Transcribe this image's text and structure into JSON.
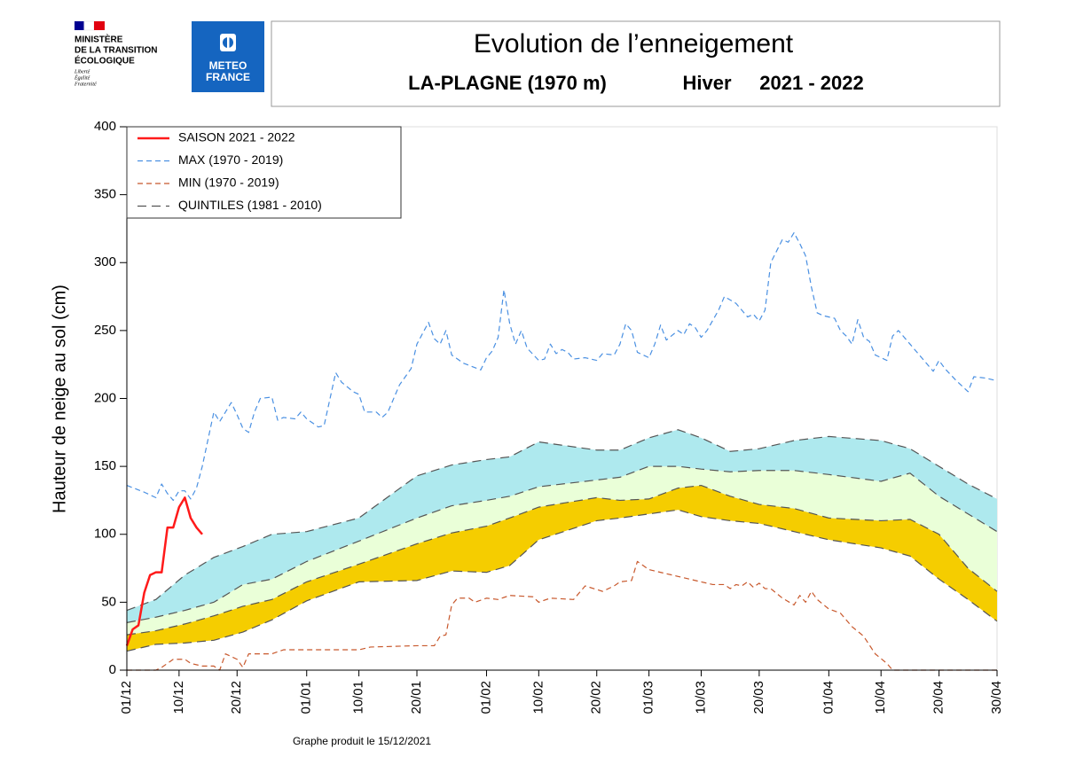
{
  "header": {
    "ministry": [
      "MINISTÈRE",
      "DE LA TRANSITION",
      "ÉCOLOGIQUE"
    ],
    "motto": [
      "Liberté",
      "Égalité",
      "Fraternité"
    ],
    "brand": [
      "METEO",
      "FRANCE"
    ]
  },
  "chart_data": {
    "type": "line",
    "title": "Evolution de l’enneigement",
    "station": "LA-PLAGNE (1970 m)",
    "season_label": "Hiver",
    "season": "2021 - 2022",
    "y_label": "Hauteur de neige au sol (cm)",
    "footer": "Graphe produit le 15/12/2021",
    "xlim": [
      0,
      150
    ],
    "xticks": [
      {
        "value": 0,
        "label": "01/12"
      },
      {
        "value": 9,
        "label": "10/12"
      },
      {
        "value": 19,
        "label": "20/12"
      },
      {
        "value": 31,
        "label": "01/01"
      },
      {
        "value": 40,
        "label": "10/01"
      },
      {
        "value": 50,
        "label": "20/01"
      },
      {
        "value": 62,
        "label": "01/02"
      },
      {
        "value": 71,
        "label": "10/02"
      },
      {
        "value": 81,
        "label": "20/02"
      },
      {
        "value": 90,
        "label": "01/03"
      },
      {
        "value": 99,
        "label": "10/03"
      },
      {
        "value": 109,
        "label": "20/03"
      },
      {
        "value": 121,
        "label": "01/04"
      },
      {
        "value": 130,
        "label": "10/04"
      },
      {
        "value": 140,
        "label": "20/04"
      },
      {
        "value": 150,
        "label": "30/04"
      }
    ],
    "ylim": [
      0,
      400
    ],
    "yticks": [
      0,
      50,
      100,
      150,
      200,
      250,
      300,
      350,
      400
    ],
    "legend": "upper left",
    "series": [
      {
        "name": "SAISON 2021 - 2022",
        "color": "#ff1a1a",
        "style": "solid",
        "x": [
          0,
          1,
          2,
          3,
          4,
          5,
          6,
          7,
          8,
          9,
          10,
          11,
          12,
          13
        ],
        "values": [
          18,
          30,
          33,
          57,
          70,
          72,
          72,
          105,
          105,
          120,
          127,
          112,
          105,
          100
        ]
      },
      {
        "name": "MAX (1970 - 2019)",
        "color": "#4a90e2",
        "style": "dashed",
        "x": [
          0,
          3,
          5,
          6,
          7,
          8,
          9,
          10,
          11,
          12,
          13,
          14,
          15,
          16,
          18,
          19,
          20,
          21,
          22,
          23,
          25,
          26,
          27,
          29,
          30,
          31,
          33,
          34,
          36,
          37,
          39,
          40,
          41,
          43,
          44,
          45,
          47,
          49,
          50,
          52,
          53,
          54,
          55,
          56,
          58,
          61,
          62,
          63,
          64,
          65,
          66,
          67,
          68,
          69,
          71,
          72,
          73,
          74,
          75,
          76,
          77,
          79,
          81,
          82,
          84,
          85,
          86,
          87,
          88,
          90,
          91,
          92,
          93,
          95,
          96,
          97,
          98,
          99,
          100,
          102,
          103,
          105,
          107,
          108,
          109,
          110,
          111,
          113,
          114,
          115,
          116,
          117,
          118,
          119,
          120,
          122,
          123,
          124,
          125,
          126,
          127,
          128,
          129,
          130,
          131,
          132,
          133,
          135,
          137,
          139,
          140,
          141,
          143,
          145,
          146,
          148,
          150
        ],
        "values": [
          136,
          131,
          127,
          137,
          130,
          125,
          132,
          132,
          126,
          134,
          150,
          170,
          190,
          183,
          197,
          188,
          178,
          175,
          190,
          200,
          201,
          184,
          186,
          185,
          190,
          185,
          179,
          180,
          219,
          212,
          205,
          203,
          190,
          190,
          186,
          190,
          210,
          222,
          240,
          256,
          244,
          240,
          250,
          232,
          226,
          221,
          230,
          235,
          245,
          280,
          255,
          240,
          250,
          237,
          228,
          229,
          240,
          233,
          236,
          234,
          229,
          230,
          228,
          233,
          232,
          240,
          255,
          250,
          234,
          230,
          240,
          254,
          243,
          250,
          247,
          255,
          252,
          245,
          250,
          265,
          275,
          270,
          260,
          262,
          257,
          265,
          300,
          317,
          315,
          322,
          314,
          305,
          282,
          263,
          261,
          259,
          250,
          246,
          240,
          258,
          245,
          242,
          232,
          230,
          228,
          246,
          250,
          240,
          230,
          220,
          228,
          222,
          213,
          205,
          216,
          215,
          213
        ]
      },
      {
        "name": "MIN (1970 - 2019)",
        "color": "#c8582c",
        "style": "dashed",
        "x": [
          0,
          5,
          6,
          8,
          10,
          11,
          13,
          15,
          16,
          17,
          19,
          20,
          21,
          23,
          25,
          27,
          31,
          40,
          42,
          50,
          53,
          54,
          55,
          56,
          57,
          59,
          60,
          62,
          64,
          66,
          70,
          71,
          73,
          77,
          79,
          82,
          84,
          85,
          87,
          88,
          90,
          94,
          99,
          101,
          103,
          104,
          105,
          106,
          107,
          108,
          109,
          110,
          111,
          113,
          115,
          116,
          117,
          118,
          119,
          121,
          123,
          125,
          127,
          129,
          131,
          132,
          150
        ],
        "values": [
          0,
          0,
          2,
          8,
          8,
          5,
          3,
          3,
          0,
          12,
          8,
          2,
          12,
          12,
          12,
          15,
          15,
          15,
          17,
          18,
          18,
          25,
          26,
          48,
          53,
          53,
          50,
          53,
          52,
          55,
          54,
          50,
          53,
          52,
          62,
          58,
          62,
          65,
          66,
          80,
          74,
          70,
          65,
          63,
          63,
          60,
          63,
          62,
          65,
          61,
          64,
          60,
          60,
          53,
          48,
          55,
          50,
          58,
          52,
          45,
          42,
          32,
          25,
          12,
          5,
          0,
          0
        ]
      },
      {
        "name": "QUINTILES (1981 - 2010)",
        "color": "#555555",
        "style": "longdash",
        "fills": [
          "#f5cd00",
          "#eaffd8",
          "#aee9ee"
        ],
        "x": [
          0,
          5,
          10,
          15,
          20,
          25,
          31,
          40,
          50,
          56,
          62,
          66,
          71,
          81,
          85,
          90,
          95,
          99,
          104,
          109,
          115,
          121,
          130,
          135,
          140,
          145,
          150
        ],
        "bands": [
          [
            14,
            19,
            20,
            22,
            28,
            37,
            51,
            65,
            66,
            73,
            72,
            77,
            96,
            110,
            112,
            115,
            118,
            113,
            110,
            108,
            102,
            96,
            90,
            84,
            67,
            52,
            36
          ],
          [
            26,
            29,
            34,
            40,
            47,
            52,
            65,
            78,
            93,
            101,
            106,
            112,
            120,
            127,
            125,
            126,
            134,
            136,
            128,
            122,
            119,
            112,
            110,
            111,
            100,
            75,
            58
          ],
          [
            35,
            39,
            44,
            50,
            63,
            67,
            80,
            95,
            112,
            121,
            125,
            128,
            135,
            140,
            142,
            150,
            150,
            148,
            146,
            147,
            147,
            144,
            139,
            145,
            128,
            115,
            102
          ],
          [
            44,
            52,
            70,
            83,
            91,
            100,
            102,
            112,
            143,
            151,
            155,
            157,
            168,
            162,
            162,
            171,
            177,
            171,
            161,
            163,
            169,
            172,
            169,
            163,
            150,
            137,
            126
          ]
        ]
      }
    ]
  }
}
